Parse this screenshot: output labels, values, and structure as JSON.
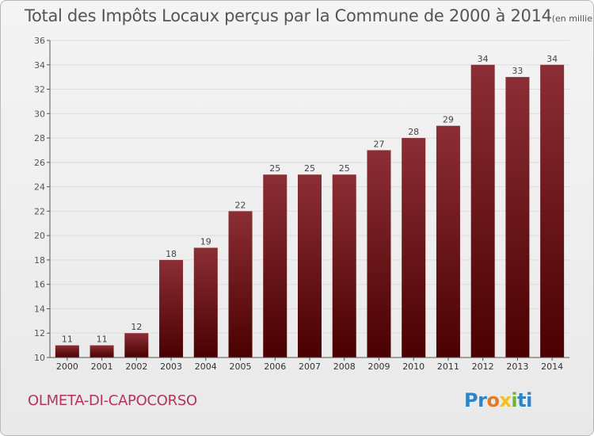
{
  "title": "Total des Impôts Locaux perçus par la Commune de 2000 à 2014",
  "title_unit": "(en milliers d'€)",
  "commune": "OLMETA-DI-CAPOCORSO",
  "logo": {
    "p1": "Pr",
    "p2": "o",
    "p3": "x",
    "p4": "i",
    "p5": "ti"
  },
  "colors": {
    "bar_top": "#8b2e35",
    "bar_bottom": "#4a0000",
    "axis": "#555555",
    "grid": "#dddddd"
  },
  "chart_data": {
    "type": "bar",
    "title": "Total des Impôts Locaux perçus par la Commune de 2000 à 2014",
    "xlabel": "",
    "ylabel": "",
    "categories": [
      "2000",
      "2001",
      "2002",
      "2003",
      "2004",
      "2005",
      "2006",
      "2007",
      "2008",
      "2009",
      "2010",
      "2011",
      "2012",
      "2013",
      "2014"
    ],
    "values": [
      11,
      11,
      12,
      18,
      19,
      22,
      25,
      25,
      25,
      27,
      28,
      29,
      34,
      33,
      34
    ],
    "ylim": [
      10,
      36
    ],
    "yticks": [
      10,
      12,
      14,
      16,
      18,
      20,
      22,
      24,
      26,
      28,
      30,
      32,
      34,
      36
    ]
  }
}
